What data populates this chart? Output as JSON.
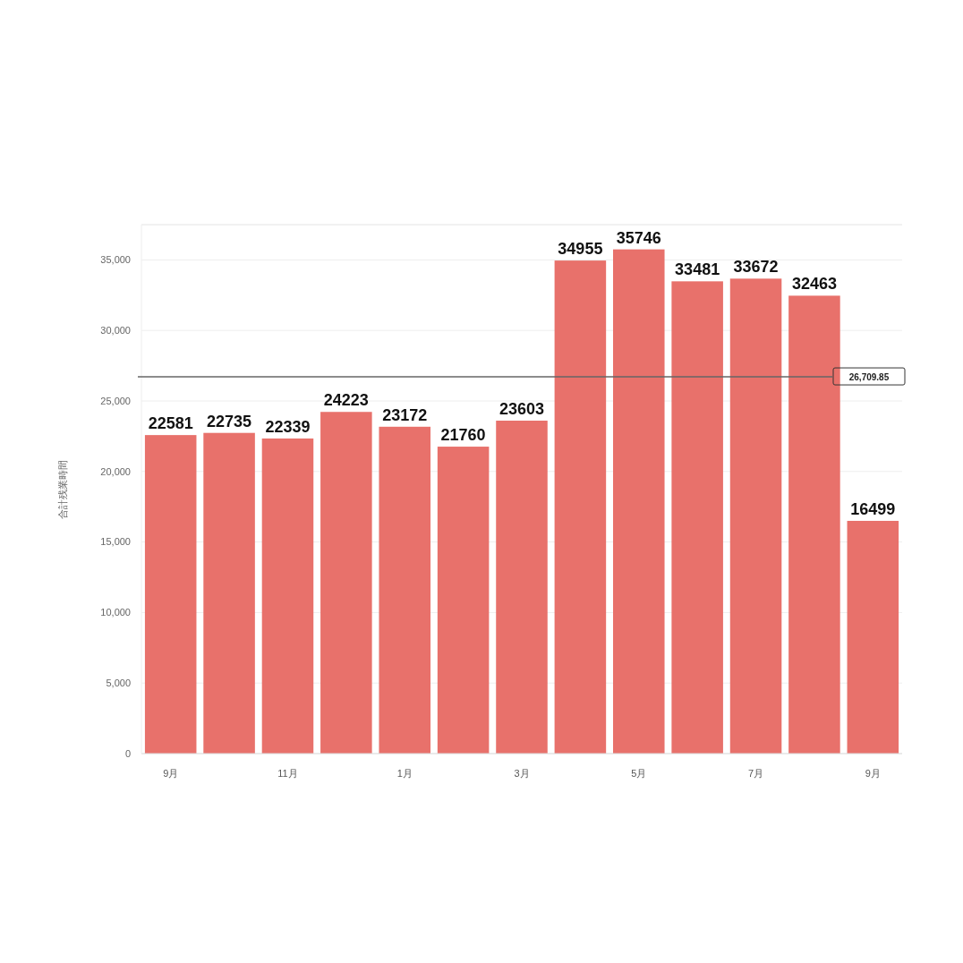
{
  "chart_data": {
    "type": "bar",
    "ylabel": "合計残業時間",
    "categories": [
      "9月",
      null,
      "11月",
      null,
      "1月",
      null,
      "3月",
      null,
      "5月",
      null,
      "7月",
      null,
      "9月"
    ],
    "values": [
      22581,
      22735,
      22339,
      24223,
      23172,
      21760,
      23603,
      34955,
      35746,
      33481,
      33672,
      32463,
      16499
    ],
    "color": "#e8716b",
    "ylim": [
      0,
      37500
    ],
    "yticks": [
      0,
      {
        "value": 5000,
        "label": "5,000"
      },
      {
        "value": 10000,
        "label": "10,000"
      },
      {
        "value": 15000,
        "label": "15,000"
      },
      {
        "value": 20000,
        "label": "20,000"
      },
      {
        "value": 25000,
        "label": "25,000"
      },
      {
        "value": 30000,
        "label": "30,000"
      },
      {
        "value": 35000,
        "label": "35,000"
      }
    ],
    "grid": "y",
    "data_labels": true,
    "ref_lines": [
      {
        "axis": "y",
        "value": 26709.85,
        "label": "26,709.85",
        "color": "#666666"
      }
    ]
  }
}
